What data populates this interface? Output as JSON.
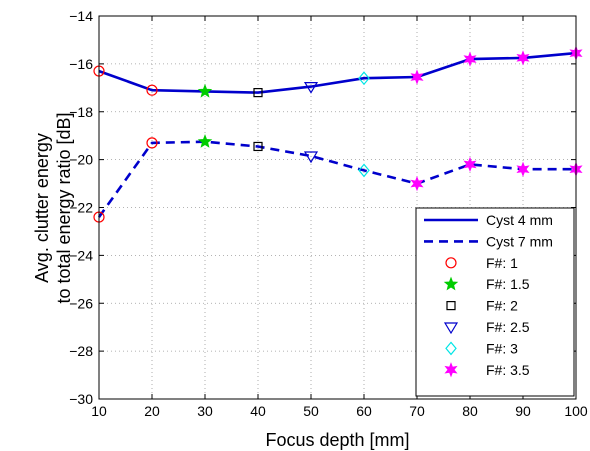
{
  "chart_data": {
    "type": "line",
    "title": "",
    "xlabel": "Focus depth [mm]",
    "ylabel_lines": [
      "Avg. clutter energy",
      "to total energy ratio [dB]"
    ],
    "xlim": [
      10,
      100
    ],
    "ylim": [
      -30,
      -14
    ],
    "xticks": [
      "10",
      "20",
      "30",
      "40",
      "50",
      "60",
      "70",
      "80",
      "90",
      "100"
    ],
    "yticks": [
      "−30",
      "−28",
      "−26",
      "−24",
      "−22",
      "−20",
      "−18",
      "−16",
      "−14"
    ],
    "grid": true,
    "legend_position": "bottom-right",
    "x": [
      10,
      20,
      30,
      40,
      50,
      60,
      70,
      80,
      90,
      100
    ],
    "series": [
      {
        "name": "Cyst 4 mm",
        "style": "solid",
        "color": "#0000cc",
        "values": [
          -16.3,
          -17.1,
          -17.15,
          -17.2,
          -16.95,
          -16.6,
          -16.55,
          -15.8,
          -15.75,
          -15.55
        ]
      },
      {
        "name": "Cyst 7 mm",
        "style": "dashed",
        "color": "#0000cc",
        "values": [
          -22.4,
          -19.3,
          -19.25,
          -19.45,
          -19.85,
          -20.45,
          -21.0,
          -20.2,
          -20.4,
          -20.4
        ]
      }
    ],
    "marker_groups": [
      {
        "name": "F#: 1",
        "marker": "circle",
        "color": "#ff0000",
        "x": [
          10,
          20
        ]
      },
      {
        "name": "F#: 1.5",
        "marker": "star5",
        "color": "#00cc00",
        "x": [
          30
        ]
      },
      {
        "name": "F#: 2",
        "marker": "square",
        "color": "#000000",
        "x": [
          40
        ]
      },
      {
        "name": "F#: 2.5",
        "marker": "triangle-down",
        "color": "#0000cc",
        "x": [
          50
        ]
      },
      {
        "name": "F#: 3",
        "marker": "diamond",
        "color": "#00e5e5",
        "x": [
          60
        ]
      },
      {
        "name": "F#: 3.5",
        "marker": "star6",
        "color": "#ff00ff",
        "x": [
          70,
          80,
          90,
          100
        ]
      }
    ]
  }
}
